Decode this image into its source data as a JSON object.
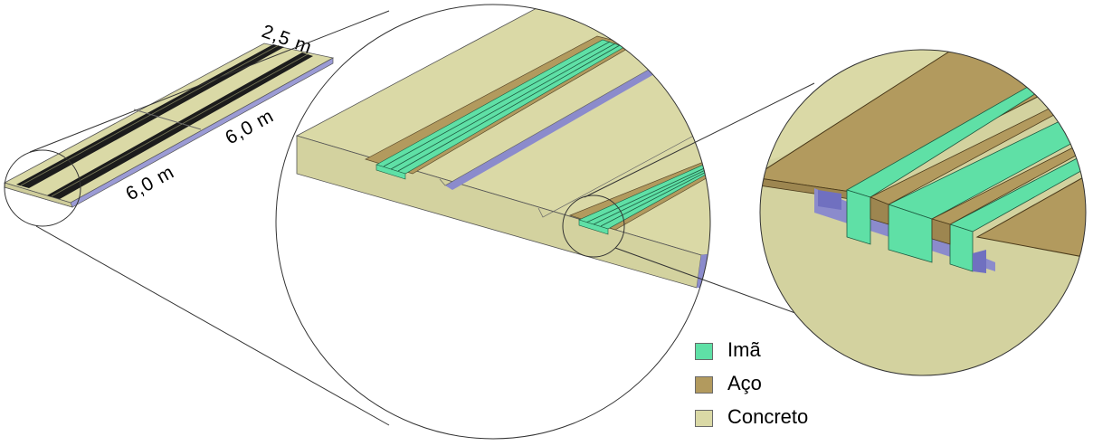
{
  "dimensions": {
    "width_label": "2,5 m",
    "length_label_1": "6,0 m",
    "length_label_2": "6,0 m"
  },
  "legend": [
    {
      "label": "Imã",
      "color": "#5fe0a6"
    },
    {
      "label": "Aço",
      "color": "#b29a5e"
    },
    {
      "label": "Concreto",
      "color": "#dad9a6"
    }
  ],
  "colors": {
    "concrete_top": "#dad9a6",
    "concrete_side": "#d3d29f",
    "steel": "#b29a5e",
    "magnet": "#5fe0a6",
    "slot_shadow": "#8b8bcc",
    "rail_dark": "#1c1c1c"
  }
}
